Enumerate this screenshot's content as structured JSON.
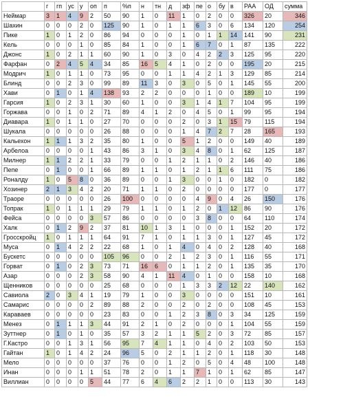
{
  "headers": [
    "",
    "г",
    "гп",
    "ус",
    "у",
    "оп",
    "п",
    "%п",
    "н",
    "тн",
    "д",
    "зф",
    "пе",
    "о",
    "бу",
    "в",
    "РАА",
    "ОД",
    "сумма"
  ],
  "rows": [
    {
      "cells": [
        "Неймар",
        "3",
        "1",
        "4",
        "9",
        "2",
        "50",
        "90",
        "1",
        "0",
        "11",
        "1",
        "0",
        "2",
        "0",
        "0",
        "326",
        "20",
        "346"
      ],
      "hl": {
        "1": "r",
        "2": "r",
        "3": "b",
        "4": "r",
        "10": "r",
        "16": "r",
        "18": "r"
      }
    },
    {
      "cells": [
        "Шахин",
        "0",
        "0",
        "0",
        "2",
        "0",
        "125",
        "90",
        "1",
        "0",
        "1",
        "1",
        "6",
        "3",
        "0",
        "6",
        "134",
        "120",
        "254"
      ],
      "hl": {
        "6": "b",
        "12": "b",
        "18": "b"
      }
    },
    {
      "cells": [
        "Пике",
        "1",
        "0",
        "1",
        "2",
        "0",
        "86",
        "94",
        "0",
        "0",
        "0",
        "1",
        "0",
        "1",
        "1",
        "14",
        "141",
        "90",
        "231"
      ],
      "hl": {
        "1": "g",
        "14": "g",
        "15": "b",
        "18": "g"
      }
    },
    {
      "cells": [
        "Кель",
        "0",
        "0",
        "0",
        "1",
        "0",
        "85",
        "84",
        "1",
        "0",
        "0",
        "1",
        "6",
        "7",
        "0",
        "1",
        "87",
        "135",
        "222"
      ],
      "hl": {
        "12": "b",
        "13": "b"
      }
    },
    {
      "cells": [
        "Джонс",
        "1",
        "0",
        "2",
        "1",
        "1",
        "60",
        "90",
        "1",
        "0",
        "3",
        "0",
        "4",
        "2",
        "2",
        "3",
        "125",
        "95",
        "220"
      ],
      "hl": {
        "1": "g",
        "14": "b"
      }
    },
    {
      "cells": [
        "Фарфан",
        "0",
        "2",
        "4",
        "5",
        "4",
        "34",
        "85",
        "16",
        "5",
        "4",
        "1",
        "0",
        "2",
        "0",
        "0",
        "195",
        "20",
        "215"
      ],
      "hl": {
        "2": "r",
        "3": "b",
        "4": "g",
        "5": "b",
        "8": "r",
        "9": "g",
        "16": "b"
      }
    },
    {
      "cells": [
        "Модрич",
        "1",
        "0",
        "1",
        "1",
        "0",
        "73",
        "95",
        "0",
        "0",
        "1",
        "1",
        "4",
        "2",
        "1",
        "3",
        "129",
        "85",
        "214"
      ],
      "hl": {
        "1": "g"
      }
    },
    {
      "cells": [
        "Блинд",
        "0",
        "0",
        "2",
        "3",
        "0",
        "99",
        "89",
        "11",
        "3",
        "0",
        "3",
        "0",
        "5",
        "0",
        "1",
        "145",
        "55",
        "200"
      ],
      "hl": {
        "8": "b",
        "11": "g"
      }
    },
    {
      "cells": [
        "Хави",
        "0",
        "1",
        "0",
        "1",
        "4",
        "138",
        "93",
        "2",
        "2",
        "0",
        "0",
        "0",
        "1",
        "0",
        "0",
        "189",
        "10",
        "199"
      ],
      "hl": {
        "2": "b",
        "5": "b",
        "6": "r",
        "16": "g"
      }
    },
    {
      "cells": [
        "Гарсия",
        "1",
        "0",
        "2",
        "3",
        "1",
        "30",
        "60",
        "1",
        "0",
        "0",
        "3",
        "1",
        "4",
        "1",
        "7",
        "104",
        "95",
        "199"
      ],
      "hl": {
        "1": "g",
        "11": "g",
        "14": "g"
      }
    },
    {
      "cells": [
        "Горжава",
        "0",
        "0",
        "1",
        "0",
        "2",
        "71",
        "89",
        "4",
        "1",
        "2",
        "0",
        "4",
        "5",
        "0",
        "1",
        "99",
        "95",
        "194"
      ],
      "hl": {}
    },
    {
      "cells": [
        "Диавара",
        "1",
        "0",
        "1",
        "1",
        "0",
        "27",
        "70",
        "0",
        "0",
        "0",
        "2",
        "0",
        "3",
        "1",
        "15",
        "79",
        "115",
        "194"
      ],
      "hl": {
        "1": "g",
        "14": "g",
        "15": "r"
      }
    },
    {
      "cells": [
        "Шукала",
        "0",
        "0",
        "0",
        "0",
        "0",
        "26",
        "88",
        "0",
        "0",
        "0",
        "1",
        "4",
        "7",
        "2",
        "7",
        "28",
        "165",
        "193"
      ],
      "hl": {
        "13": "b",
        "14": "g",
        "17": "r"
      }
    },
    {
      "cells": [
        "Кальехон",
        "1",
        "1",
        "1",
        "3",
        "2",
        "35",
        "80",
        "1",
        "0",
        "0",
        "5",
        "1",
        "2",
        "0",
        "0",
        "149",
        "40",
        "189"
      ],
      "hl": {
        "1": "g",
        "2": "b",
        "11": "r"
      }
    },
    {
      "cells": [
        "Арбелоа",
        "0",
        "0",
        "0",
        "0",
        "1",
        "43",
        "86",
        "3",
        "1",
        "0",
        "3",
        "4",
        "8",
        "0",
        "1",
        "62",
        "125",
        "187"
      ],
      "hl": {
        "11": "g",
        "13": "b"
      }
    },
    {
      "cells": [
        "Милнер",
        "1",
        "1",
        "2",
        "2",
        "1",
        "33",
        "79",
        "0",
        "0",
        "1",
        "2",
        "1",
        "1",
        "0",
        "2",
        "146",
        "40",
        "186"
      ],
      "hl": {
        "1": "g",
        "2": "b"
      }
    },
    {
      "cells": [
        "Пепе",
        "0",
        "1",
        "0",
        "0",
        "1",
        "66",
        "89",
        "1",
        "1",
        "0",
        "1",
        "2",
        "1",
        "1",
        "6",
        "111",
        "75",
        "186"
      ],
      "hl": {
        "2": "b",
        "14": "g"
      }
    },
    {
      "cells": [
        "Роналду",
        "1",
        "0",
        "5",
        "8",
        "0",
        "36",
        "89",
        "0",
        "0",
        "1",
        "3",
        "0",
        "0",
        "1",
        "0",
        "182",
        "0",
        "182"
      ],
      "hl": {
        "1": "g",
        "3": "r",
        "4": "b",
        "11": "g"
      }
    },
    {
      "cells": [
        "Хозинер",
        "2",
        "1",
        "3",
        "4",
        "2",
        "20",
        "71",
        "1",
        "1",
        "0",
        "2",
        "0",
        "0",
        "0",
        "0",
        "177",
        "0",
        "177"
      ],
      "hl": {
        "1": "b",
        "2": "b",
        "3": "g"
      }
    },
    {
      "cells": [
        "Траоре",
        "0",
        "0",
        "0",
        "0",
        "0",
        "26",
        "100",
        "0",
        "0",
        "0",
        "0",
        "4",
        "9",
        "0",
        "4",
        "26",
        "150",
        "176"
      ],
      "hl": {
        "7": "r",
        "13": "r",
        "17": "b"
      }
    },
    {
      "cells": [
        "Топрак",
        "1",
        "0",
        "1",
        "1",
        "1",
        "29",
        "79",
        "1",
        "1",
        "0",
        "1",
        "2",
        "0",
        "1",
        "12",
        "86",
        "90",
        "176"
      ],
      "hl": {
        "1": "g",
        "14": "b",
        "15": "g"
      }
    },
    {
      "cells": [
        "Фейса",
        "0",
        "0",
        "0",
        "0",
        "3",
        "57",
        "86",
        "0",
        "0",
        "0",
        "0",
        "3",
        "8",
        "0",
        "0",
        "64",
        "110",
        "174"
      ],
      "hl": {
        "5": "g",
        "13": "b"
      }
    },
    {
      "cells": [
        "Халк",
        "0",
        "1",
        "2",
        "9",
        "2",
        "37",
        "81",
        "10",
        "1",
        "3",
        "1",
        "0",
        "0",
        "0",
        "1",
        "152",
        "20",
        "172"
      ],
      "hl": {
        "2": "b",
        "4": "r",
        "8": "g"
      }
    },
    {
      "cells": [
        "Гросскройц",
        "1",
        "0",
        "1",
        "1",
        "1",
        "64",
        "91",
        "7",
        "1",
        "0",
        "1",
        "1",
        "3",
        "0",
        "1",
        "127",
        "45",
        "172"
      ],
      "hl": {
        "1": "g"
      }
    },
    {
      "cells": [
        "Муса",
        "0",
        "1",
        "4",
        "2",
        "2",
        "22",
        "68",
        "1",
        "0",
        "1",
        "4",
        "0",
        "4",
        "0",
        "2",
        "128",
        "40",
        "168"
      ],
      "hl": {
        "2": "b",
        "11": "b"
      }
    },
    {
      "cells": [
        "Бускетс",
        "0",
        "0",
        "0",
        "0",
        "0",
        "105",
        "96",
        "0",
        "0",
        "2",
        "1",
        "2",
        "3",
        "0",
        "1",
        "116",
        "55",
        "171"
      ],
      "hl": {
        "6": "g",
        "7": "g"
      }
    },
    {
      "cells": [
        "Горват",
        "0",
        "1",
        "0",
        "2",
        "3",
        "73",
        "71",
        "16",
        "6",
        "0",
        "1",
        "1",
        "2",
        "0",
        "1",
        "135",
        "35",
        "170"
      ],
      "hl": {
        "2": "b",
        "5": "g",
        "8": "r",
        "9": "r"
      }
    },
    {
      "cells": [
        "Азар",
        "0",
        "0",
        "0",
        "2",
        "3",
        "58",
        "90",
        "4",
        "1",
        "11",
        "4",
        "0",
        "1",
        "0",
        "0",
        "158",
        "10",
        "168"
      ],
      "hl": {
        "5": "g",
        "10": "r",
        "11": "b"
      }
    },
    {
      "cells": [
        "Щенников",
        "0",
        "0",
        "0",
        "0",
        "0",
        "25",
        "68",
        "0",
        "0",
        "0",
        "1",
        "3",
        "3",
        "2",
        "12",
        "22",
        "140",
        "162"
      ],
      "hl": {
        "14": "b",
        "15": "g",
        "17": "g"
      }
    },
    {
      "cells": [
        "Савиола",
        "2",
        "0",
        "3",
        "4",
        "1",
        "19",
        "79",
        "1",
        "0",
        "0",
        "3",
        "0",
        "0",
        "0",
        "0",
        "151",
        "10",
        "161"
      ],
      "hl": {
        "1": "b",
        "3": "g",
        "11": "g"
      }
    },
    {
      "cells": [
        "Самарис",
        "0",
        "0",
        "0",
        "0",
        "2",
        "89",
        "88",
        "2",
        "0",
        "0",
        "2",
        "0",
        "2",
        "0",
        "0",
        "108",
        "45",
        "153"
      ],
      "hl": {}
    },
    {
      "cells": [
        "Караваев",
        "0",
        "0",
        "0",
        "0",
        "0",
        "23",
        "83",
        "0",
        "0",
        "1",
        "2",
        "3",
        "8",
        "0",
        "3",
        "34",
        "125",
        "159"
      ],
      "hl": {
        "13": "b"
      }
    },
    {
      "cells": [
        "Менез",
        "0",
        "1",
        "1",
        "1",
        "3",
        "44",
        "91",
        "2",
        "1",
        "0",
        "2",
        "0",
        "0",
        "0",
        "1",
        "104",
        "55",
        "159"
      ],
      "hl": {
        "2": "b",
        "5": "g"
      }
    },
    {
      "cells": [
        "Зуттнер",
        "0",
        "1",
        "0",
        "1",
        "0",
        "35",
        "57",
        "3",
        "2",
        "1",
        "1",
        "5",
        "2",
        "0",
        "3",
        "72",
        "85",
        "157"
      ],
      "hl": {
        "2": "b",
        "12": "g"
      }
    },
    {
      "cells": [
        "Г.Кастро",
        "0",
        "0",
        "1",
        "3",
        "1",
        "56",
        "95",
        "7",
        "4",
        "1",
        "1",
        "0",
        "4",
        "0",
        "2",
        "103",
        "50",
        "153"
      ],
      "hl": {
        "7": "g",
        "9": "g"
      }
    },
    {
      "cells": [
        "Гайтан",
        "1",
        "0",
        "1",
        "4",
        "2",
        "24",
        "96",
        "5",
        "0",
        "2",
        "1",
        "1",
        "2",
        "0",
        "1",
        "118",
        "30",
        "148"
      ],
      "hl": {
        "1": "g",
        "7": "b"
      }
    },
    {
      "cells": [
        "Мело",
        "0",
        "0",
        "0",
        "0",
        "0",
        "37",
        "76",
        "0",
        "0",
        "1",
        "2",
        "0",
        "5",
        "0",
        "4",
        "48",
        "100",
        "148"
      ],
      "hl": {}
    },
    {
      "cells": [
        "Инан",
        "0",
        "0",
        "0",
        "1",
        "1",
        "51",
        "78",
        "2",
        "0",
        "1",
        "1",
        "7",
        "1",
        "0",
        "1",
        "62",
        "85",
        "147"
      ],
      "hl": {
        "12": "r"
      }
    },
    {
      "cells": [
        "Виллиан",
        "0",
        "0",
        "0",
        "0",
        "5",
        "44",
        "77",
        "6",
        "4",
        "6",
        "2",
        "2",
        "1",
        "0",
        "0",
        "113",
        "30",
        "143"
      ],
      "hl": {
        "5": "r",
        "9": "g",
        "10": "b"
      }
    }
  ]
}
